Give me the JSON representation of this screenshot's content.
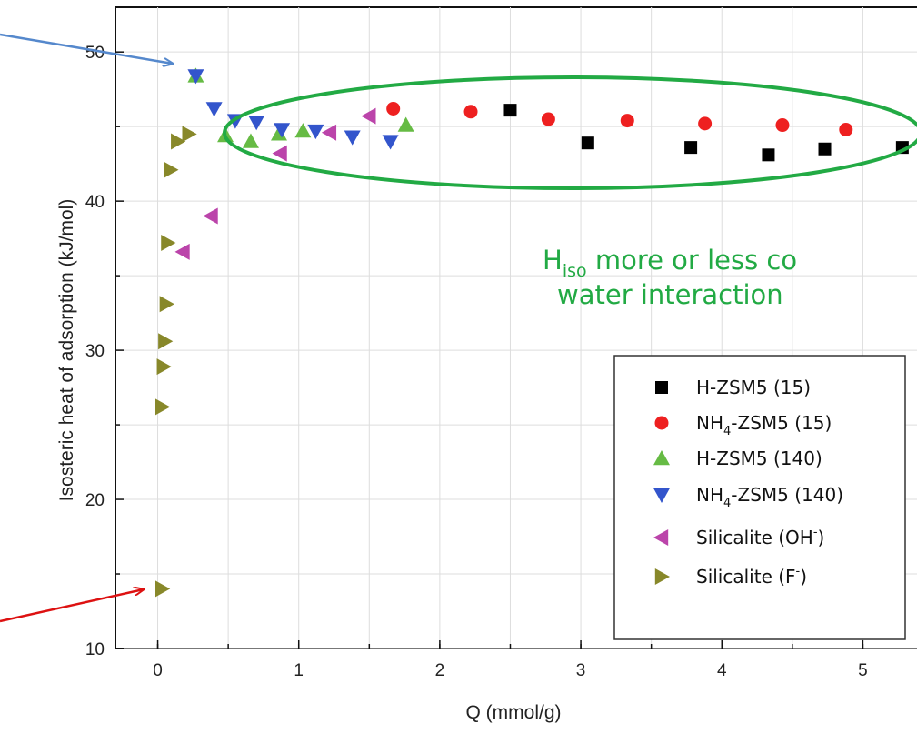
{
  "chart_data": {
    "type": "scatter",
    "xlabel": "Q (mmol/g)",
    "ylabel": "Isosteric heat of adsorption (kJ/mol)",
    "xlim": [
      -0.3,
      5.5
    ],
    "ylim": [
      10,
      53
    ],
    "x_ticks": [
      0,
      1,
      2,
      3,
      4,
      5
    ],
    "y_ticks": [
      10,
      20,
      30,
      40,
      50
    ],
    "grid": true,
    "legend_placement": "bottom-right",
    "series": [
      {
        "name": "H-ZSM5 (15)",
        "marker": "square",
        "color": "#000000",
        "points": [
          [
            2.5,
            46.1
          ],
          [
            3.05,
            43.9
          ],
          [
            3.78,
            43.6
          ],
          [
            4.33,
            43.1
          ],
          [
            4.73,
            43.5
          ],
          [
            5.28,
            43.6
          ]
        ]
      },
      {
        "name": "NH4-ZSM5 (15)",
        "marker": "circle",
        "color": "#ee2020",
        "points": [
          [
            1.67,
            46.2
          ],
          [
            2.22,
            46.0
          ],
          [
            2.77,
            45.5
          ],
          [
            3.33,
            45.4
          ],
          [
            3.88,
            45.2
          ],
          [
            4.43,
            45.1
          ],
          [
            4.88,
            44.8
          ]
        ]
      },
      {
        "name": "H-ZSM5 (140)",
        "marker": "triangle-up",
        "color": "#66bb44",
        "points": [
          [
            0.27,
            48.4
          ],
          [
            0.48,
            44.4
          ],
          [
            0.66,
            44.0
          ],
          [
            0.86,
            44.5
          ],
          [
            1.03,
            44.7
          ],
          [
            1.76,
            45.1
          ]
        ]
      },
      {
        "name": "NH4-ZSM5 (140)",
        "marker": "triangle-down",
        "color": "#3355cc",
        "points": [
          [
            0.27,
            48.4
          ],
          [
            0.4,
            46.2
          ],
          [
            0.55,
            45.4
          ],
          [
            0.7,
            45.3
          ],
          [
            0.88,
            44.8
          ],
          [
            1.12,
            44.7
          ],
          [
            1.38,
            44.3
          ],
          [
            1.65,
            44.0
          ]
        ]
      },
      {
        "name": "Silicalite (OH-)",
        "marker": "triangle-left",
        "color": "#bb44aa",
        "points": [
          [
            0.18,
            36.6
          ],
          [
            0.38,
            39.0
          ],
          [
            0.87,
            43.2
          ],
          [
            1.22,
            44.6
          ],
          [
            1.5,
            45.7
          ]
        ]
      },
      {
        "name": "Silicalite (F-)",
        "marker": "triangle-right",
        "color": "#88882a",
        "points": [
          [
            0.03,
            14.0
          ],
          [
            0.03,
            26.2
          ],
          [
            0.04,
            28.9
          ],
          [
            0.05,
            30.6
          ],
          [
            0.06,
            33.1
          ],
          [
            0.07,
            37.2
          ],
          [
            0.09,
            42.1
          ],
          [
            0.14,
            44.0
          ],
          [
            0.22,
            44.5
          ]
        ]
      }
    ],
    "legend": [
      {
        "base": "H-ZSM5 (15)",
        "sub": "",
        "sup": "",
        "rest": ""
      },
      {
        "base": "NH",
        "sub": "4",
        "sup": "",
        "rest": "-ZSM5 (15)"
      },
      {
        "base": "H-ZSM5 (140)",
        "sub": "",
        "sup": "",
        "rest": ""
      },
      {
        "base": "NH",
        "sub": "4",
        "sup": "",
        "rest": "-ZSM5 (140)"
      },
      {
        "base": "Silicalite (OH",
        "sub": "",
        "sup": "-",
        "rest": ")"
      },
      {
        "base": "Silicalite (F",
        "sub": "",
        "sup": "-",
        "rest": ")"
      }
    ],
    "annotation": {
      "line1_prefix": "H",
      "line1_sub": "iso",
      "line1_rest": " more or less co",
      "line2": "water interaction",
      "color": "#22aa44"
    },
    "colors": {
      "ellipse": "#22aa44",
      "arrow_blue": "#5588cc",
      "arrow_red": "#dd1111",
      "axis": "#111111",
      "grid": "#dddddd"
    }
  }
}
